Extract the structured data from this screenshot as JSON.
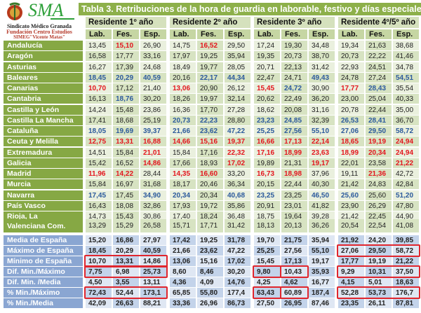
{
  "logo": {
    "brand": "SMA",
    "line1": "Sindicato Médico Granada",
    "line2": "Fundación Centro Estudios",
    "line3": "SIMEG\"Vicente Matas\""
  },
  "title": "Tabla 3. Retribuciones de la hora de guardia en laborable, festivo y días especiales 2024",
  "groups": [
    "Residente 1º año",
    "Residente 2º año",
    "Residente 3º año",
    "Residente 4º/5º año"
  ],
  "subheaders": [
    "Lab.",
    "Fes.",
    "Esp."
  ],
  "colors": {
    "red": "#e3161e",
    "blue": "#2c5a9c",
    "green_header": "#86a844",
    "blue_header": "#8aa6d2",
    "highlight": "#e0262e"
  },
  "regions": [
    {
      "name": "Andalucía",
      "values": [
        "13,45",
        "15,10",
        "26,90",
        "14,75",
        "16,52",
        "29,50",
        "17,24",
        "19,30",
        "34,48",
        "19,34",
        "21,63",
        "38,68"
      ],
      "marks": [
        "",
        "r",
        "",
        "",
        "r",
        "",
        "",
        "",
        "",
        "",
        "",
        ""
      ]
    },
    {
      "name": "Aragón",
      "values": [
        "16,58",
        "17,77",
        "33,16",
        "17,97",
        "19,25",
        "35,94",
        "19,35",
        "20,73",
        "38,70",
        "20,73",
        "22,22",
        "41,46"
      ],
      "marks": [
        "",
        "",
        "",
        "",
        "",
        "",
        "",
        "",
        "",
        "",
        "",
        ""
      ]
    },
    {
      "name": "Asturias",
      "values": [
        "16,27",
        "17,39",
        "24,68",
        "18,49",
        "19,77",
        "28,05",
        "20,71",
        "22,13",
        "31,42",
        "22,93",
        "24,51",
        "34,78"
      ],
      "marks": [
        "",
        "",
        "",
        "",
        "",
        "",
        "",
        "",
        "",
        "",
        "",
        ""
      ]
    },
    {
      "name": "Baleares",
      "values": [
        "18,45",
        "20,29",
        "40,59",
        "20,16",
        "22,17",
        "44,34",
        "22,47",
        "24,71",
        "49,43",
        "24,78",
        "27,24",
        "54,51"
      ],
      "marks": [
        "b",
        "b",
        "b",
        "",
        "b",
        "b",
        "",
        "",
        "b",
        "",
        "",
        "b"
      ]
    },
    {
      "name": "Canarias",
      "values": [
        "10,70",
        "17,12",
        "21,40",
        "13,06",
        "20,90",
        "26,12",
        "15,45",
        "24,72",
        "30,90",
        "17,77",
        "28,43",
        "35,54"
      ],
      "marks": [
        "r",
        "",
        "",
        "r",
        "",
        "",
        "r",
        "b",
        "",
        "r",
        "b",
        ""
      ]
    },
    {
      "name": "Cantabria",
      "values": [
        "16,13",
        "18,76",
        "30,20",
        "18,26",
        "19,97",
        "32,14",
        "20,62",
        "22,49",
        "36,20",
        "23,00",
        "25,04",
        "40,33"
      ],
      "marks": [
        "",
        "b",
        "",
        "",
        "",
        "",
        "",
        "",
        "",
        "",
        "",
        ""
      ]
    },
    {
      "name": "Castilla y León",
      "values": [
        "14,24",
        "15,48",
        "23,86",
        "16,36",
        "17,70",
        "27,28",
        "18,62",
        "20,08",
        "31,16",
        "20,78",
        "22,44",
        "35,00"
      ],
      "marks": [
        "",
        "",
        "",
        "",
        "",
        "",
        "",
        "",
        "",
        "",
        "",
        ""
      ]
    },
    {
      "name": "Castilla La Mancha",
      "values": [
        "17,41",
        "18,68",
        "25,19",
        "20,73",
        "22,23",
        "28,80",
        "23,23",
        "24,85",
        "32,39",
        "26,53",
        "28,41",
        "36,70"
      ],
      "marks": [
        "",
        "",
        "",
        "b",
        "b",
        "",
        "b",
        "b",
        "",
        "b",
        "b",
        ""
      ]
    },
    {
      "name": "Cataluña",
      "values": [
        "18,05",
        "19,69",
        "39,37",
        "21,66",
        "23,62",
        "47,22",
        "25,25",
        "27,56",
        "55,10",
        "27,06",
        "29,50",
        "58,72"
      ],
      "marks": [
        "b",
        "b",
        "b",
        "b",
        "b",
        "b",
        "b",
        "b",
        "b",
        "b",
        "b",
        "b"
      ]
    },
    {
      "name": "Ceuta y Melilla",
      "values": [
        "12,75",
        "13,31",
        "16,88",
        "14,66",
        "15,16",
        "19,37",
        "16,66",
        "17,13",
        "22,14",
        "18,65",
        "19,19",
        "24,94"
      ],
      "marks": [
        "r",
        "r",
        "r",
        "r",
        "r",
        "r",
        "r",
        "r",
        "r",
        "r",
        "r",
        "r"
      ]
    },
    {
      "name": "Extremadura",
      "values": [
        "14,51",
        "15,84",
        "21,01",
        "15,84",
        "17,16",
        "22,32",
        "17,16",
        "18,99",
        "23,63",
        "18,99",
        "20,34",
        "24,94"
      ],
      "marks": [
        "",
        "",
        "r",
        "",
        "",
        "r",
        "r",
        "r",
        "r",
        "r",
        "r",
        "r"
      ]
    },
    {
      "name": "Galicia",
      "values": [
        "15,42",
        "16,52",
        "14,86",
        "17,66",
        "18,93",
        "17,02",
        "19,89",
        "21,31",
        "19,17",
        "22,01",
        "23,58",
        "21,22"
      ],
      "marks": [
        "",
        "",
        "r",
        "",
        "",
        "r",
        "",
        "",
        "r",
        "",
        "",
        "r"
      ]
    },
    {
      "name": "Madrid",
      "values": [
        "11,96",
        "14,22",
        "28,44",
        "14,35",
        "16,60",
        "33,20",
        "16,73",
        "18,98",
        "37,96",
        "19,11",
        "21,36",
        "42,72"
      ],
      "marks": [
        "r",
        "r",
        "",
        "r",
        "r",
        "",
        "r",
        "r",
        "",
        "",
        "r",
        ""
      ]
    },
    {
      "name": "Murcia",
      "values": [
        "15,84",
        "16,97",
        "31,68",
        "18,17",
        "20,46",
        "36,34",
        "20,15",
        "22,44",
        "40,30",
        "21,42",
        "24,83",
        "42,84"
      ],
      "marks": [
        "",
        "",
        "",
        "",
        "",
        "",
        "",
        "",
        "",
        "",
        "",
        ""
      ]
    },
    {
      "name": "Navarra",
      "values": [
        "17,45",
        "17,45",
        "34,90",
        "20,34",
        "20,34",
        "40,68",
        "23,25",
        "23,25",
        "46,50",
        "25,60",
        "25,60",
        "51,20"
      ],
      "marks": [
        "b",
        "",
        "b",
        "b",
        "",
        "b",
        "b",
        "",
        "b",
        "b",
        "",
        "b"
      ]
    },
    {
      "name": "País Vasco",
      "values": [
        "16,43",
        "18,08",
        "32,86",
        "17,93",
        "19,72",
        "35,86",
        "20,91",
        "23,01",
        "41,82",
        "23,90",
        "26,29",
        "47,80"
      ],
      "marks": [
        "",
        "",
        "",
        "",
        "",
        "",
        "",
        "",
        "",
        "",
        "",
        ""
      ]
    },
    {
      "name": "Rioja, La",
      "values": [
        "14,73",
        "15,43",
        "30,86",
        "17,40",
        "18,24",
        "36,48",
        "18,75",
        "19,64",
        "39,28",
        "21,42",
        "22,45",
        "44,90"
      ],
      "marks": [
        "",
        "",
        "",
        "",
        "",
        "",
        "",
        "",
        "",
        "",
        "",
        ""
      ]
    },
    {
      "name": "Valenciana Com.",
      "values": [
        "13,29",
        "15,29",
        "26,58",
        "15,71",
        "17,71",
        "31,42",
        "18,13",
        "20,13",
        "36,26",
        "20,54",
        "22,54",
        "41,08"
      ],
      "marks": [
        "",
        "",
        "",
        "",
        "",
        "",
        "",
        "",
        "",
        "",
        "",
        ""
      ]
    }
  ],
  "summary": [
    {
      "name": "Media de España",
      "values": [
        "15,20",
        "16,86",
        "27,97",
        "17,42",
        "19,25",
        "31,78",
        "19,70",
        "21,75",
        "35,94",
        "21,92",
        "24,20",
        "39,85"
      ]
    },
    {
      "name": "Máximo de España",
      "values": [
        "18,45",
        "20,29",
        "40,59",
        "21,66",
        "23,62",
        "47,22",
        "25,25",
        "27,56",
        "55,10",
        "27,06",
        "29,50",
        "58,72"
      ]
    },
    {
      "name": "Mínimo de España",
      "values": [
        "10,70",
        "13,31",
        "14,86",
        "13,06",
        "15,16",
        "17,02",
        "15,45",
        "17,13",
        "19,17",
        "17,77",
        "19,19",
        "21,22"
      ]
    },
    {
      "name": "Dif. Min./Máximo",
      "values": [
        "7,75",
        "6,98",
        "25,73",
        "8,60",
        "8,46",
        "30,20",
        "9,80",
        "10,43",
        "35,93",
        "9,29",
        "10,31",
        "37,50"
      ]
    },
    {
      "name": "Dif. Min. /Media",
      "values": [
        "4,50",
        "3,55",
        "13,11",
        "4,36",
        "4,09",
        "14,76",
        "4,25",
        "4,62",
        "16,77",
        "4,15",
        "5,01",
        "18,63"
      ]
    },
    {
      "name": "% Min./Máximo",
      "values": [
        "72,43",
        "52,44",
        "173,1",
        "65,85",
        "55,80",
        "177,4",
        "63,43",
        "60,89",
        "187,4",
        "52,28",
        "53,73",
        "176,7"
      ]
    },
    {
      "name": "% Min./Media",
      "values": [
        "42,09",
        "26,63",
        "88,21",
        "33,36",
        "26,96",
        "86,73",
        "27,50",
        "26,95",
        "87,46",
        "23,35",
        "26,11",
        "87,81"
      ]
    }
  ],
  "highlights": [
    {
      "row": 1,
      "from": 9,
      "to": 11
    },
    {
      "row": 2,
      "from": 0,
      "to": 2
    },
    {
      "row": 3,
      "from": 0,
      "to": 2
    },
    {
      "row": 3,
      "from": 6,
      "to": 6
    },
    {
      "row": 3,
      "from": 7,
      "to": 7
    },
    {
      "row": 3,
      "from": 9,
      "to": 11
    },
    {
      "row": 5,
      "from": 0,
      "to": 2
    },
    {
      "row": 5,
      "from": 6,
      "to": 6
    },
    {
      "row": 5,
      "from": 7,
      "to": 7
    },
    {
      "row": 5,
      "from": 9,
      "to": 11
    }
  ]
}
